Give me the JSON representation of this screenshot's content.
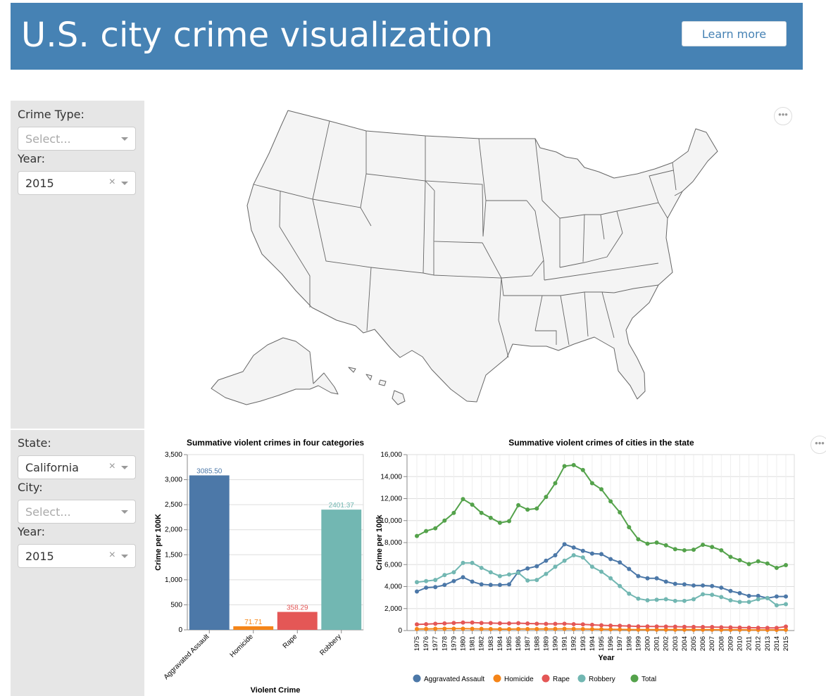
{
  "header": {
    "title": "U.S. city crime visualization",
    "learn_more": "Learn more"
  },
  "panel_top": {
    "crime_type_label": "Crime Type:",
    "crime_type_placeholder": "Select...",
    "year_label": "Year:",
    "year_value": "2015"
  },
  "panel_bottom": {
    "state_label": "State:",
    "state_value": "California",
    "city_label": "City:",
    "city_placeholder": "Select...",
    "year_label": "Year:",
    "year_value": "2015"
  },
  "icons": {
    "clear": "×",
    "more": "•••"
  },
  "colors": {
    "header": "#4682b4",
    "panel": "#e6e6e6"
  },
  "chart_data": [
    {
      "type": "bar",
      "title": "Summative violent crimes in four categories",
      "xlabel": "Violent Crime",
      "ylabel": "Crime per 100K",
      "ylim": [
        0,
        3500
      ],
      "yticks": [
        0,
        500,
        1000,
        1500,
        2000,
        2500,
        3000,
        3500
      ],
      "categories": [
        "Aggravated Assault",
        "Homicide",
        "Rape",
        "Robbery"
      ],
      "values": [
        3085.5,
        71.71,
        358.29,
        2401.37
      ],
      "value_labels": [
        "3085.50",
        "71.71",
        "358.29",
        "2401.37"
      ],
      "colors": [
        "#4c78a8",
        "#f58518",
        "#e45756",
        "#72b7b2"
      ]
    },
    {
      "type": "line",
      "title": "Summative violent crimes of cities in the state",
      "xlabel": "Year",
      "ylabel": "Crime per 100k",
      "ylim": [
        0,
        16000
      ],
      "yticks": [
        0,
        2000,
        4000,
        6000,
        8000,
        10000,
        12000,
        14000,
        16000
      ],
      "x": [
        1975,
        1976,
        1977,
        1978,
        1979,
        1980,
        1981,
        1982,
        1983,
        1984,
        1985,
        1986,
        1987,
        1988,
        1989,
        1990,
        1991,
        1992,
        1993,
        1994,
        1995,
        1996,
        1997,
        1998,
        1999,
        2000,
        2001,
        2002,
        2003,
        2004,
        2005,
        2006,
        2007,
        2008,
        2009,
        2010,
        2011,
        2012,
        2013,
        2014,
        2015
      ],
      "legend_position": "bottom",
      "series": [
        {
          "name": "Aggravated Assault",
          "color": "#4c78a8",
          "values": [
            3550,
            3900,
            3950,
            4150,
            4500,
            4850,
            4450,
            4200,
            4150,
            4150,
            4200,
            5350,
            5650,
            5850,
            6350,
            6850,
            7850,
            7550,
            7250,
            7000,
            6950,
            6500,
            6200,
            5600,
            4950,
            4750,
            4750,
            4450,
            4250,
            4200,
            4100,
            4100,
            4050,
            3900,
            3600,
            3400,
            3150,
            3150,
            2950,
            3100,
            3100
          ]
        },
        {
          "name": "Homicide",
          "color": "#f58518",
          "values": [
            140,
            150,
            160,
            170,
            170,
            170,
            160,
            150,
            140,
            130,
            130,
            140,
            140,
            140,
            150,
            150,
            160,
            150,
            140,
            130,
            120,
            110,
            100,
            90,
            80,
            80,
            80,
            80,
            80,
            80,
            80,
            80,
            80,
            70,
            70,
            70,
            60,
            60,
            60,
            60,
            70
          ]
        },
        {
          "name": "Rape",
          "color": "#e45756",
          "values": [
            560,
            580,
            620,
            650,
            690,
            730,
            730,
            690,
            680,
            660,
            650,
            670,
            640,
            620,
            610,
            610,
            620,
            580,
            560,
            520,
            480,
            450,
            430,
            410,
            380,
            380,
            370,
            360,
            350,
            340,
            330,
            320,
            320,
            300,
            290,
            270,
            260,
            250,
            240,
            240,
            358
          ]
        },
        {
          "name": "Robbery",
          "color": "#72b7b2",
          "values": [
            4400,
            4500,
            4600,
            5050,
            5300,
            6150,
            6150,
            5700,
            5300,
            4950,
            5100,
            5250,
            4550,
            4600,
            5150,
            5800,
            6350,
            6850,
            6650,
            5800,
            5350,
            4750,
            4050,
            3350,
            2900,
            2750,
            2800,
            2850,
            2700,
            2700,
            2850,
            3300,
            3250,
            3050,
            2750,
            2600,
            2600,
            2850,
            2950,
            2300,
            2401
          ]
        },
        {
          "name": "Total",
          "color": "#54a24b",
          "values": [
            8600,
            9050,
            9300,
            10000,
            10700,
            11950,
            11450,
            10700,
            10250,
            9800,
            9950,
            11400,
            11000,
            11100,
            12150,
            13400,
            14950,
            15050,
            14600,
            13400,
            12850,
            11750,
            10750,
            9400,
            8300,
            7900,
            8000,
            7750,
            7400,
            7300,
            7350,
            7800,
            7600,
            7300,
            6700,
            6400,
            6050,
            6300,
            6100,
            5700,
            5950
          ]
        }
      ]
    }
  ]
}
